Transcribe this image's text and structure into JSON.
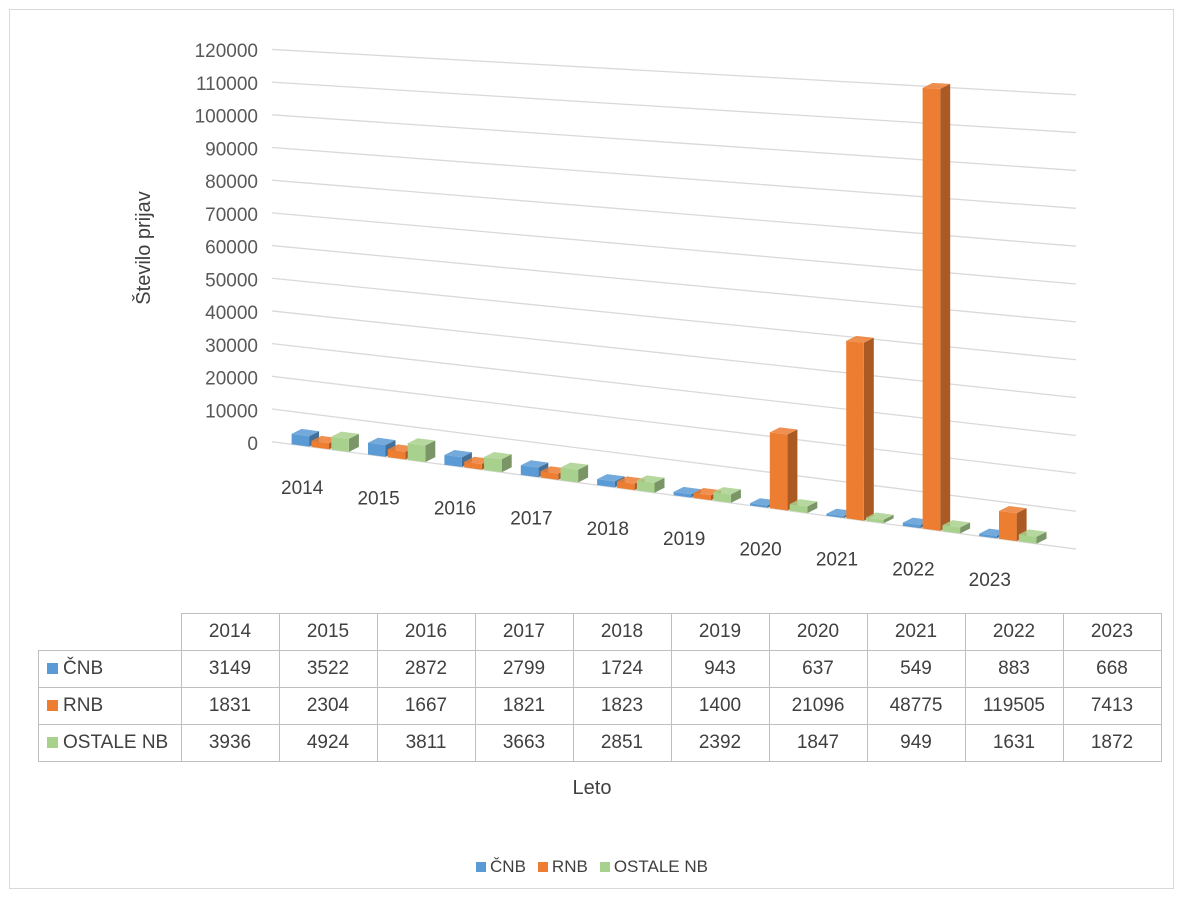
{
  "chart_data": {
    "type": "bar",
    "variant": "3d-clustered-column",
    "categories": [
      "2014",
      "2015",
      "2016",
      "2017",
      "2018",
      "2019",
      "2020",
      "2021",
      "2022",
      "2023"
    ],
    "series": [
      {
        "name": "ČNB",
        "color": "#5b9bd5",
        "values": [
          3149,
          3522,
          2872,
          2799,
          1724,
          943,
          637,
          549,
          883,
          668
        ]
      },
      {
        "name": "RNB",
        "color": "#ed7d31",
        "values": [
          1831,
          2304,
          1667,
          1821,
          1823,
          1400,
          21096,
          48775,
          119505,
          7413
        ]
      },
      {
        "name": "OSTALE NB",
        "color": "#a9d18e",
        "values": [
          3936,
          4924,
          3811,
          3663,
          2851,
          2392,
          1847,
          949,
          1631,
          1872
        ]
      }
    ],
    "xlabel": "Leto",
    "ylabel": "Število prijav",
    "ylim": [
      0,
      120000
    ],
    "yticks": [
      "0",
      "10000",
      "20000",
      "30000",
      "40000",
      "50000",
      "60000",
      "70000",
      "80000",
      "90000",
      "100000",
      "110000",
      "120000"
    ],
    "grid": true,
    "legend": "bottom",
    "data_table": true
  }
}
